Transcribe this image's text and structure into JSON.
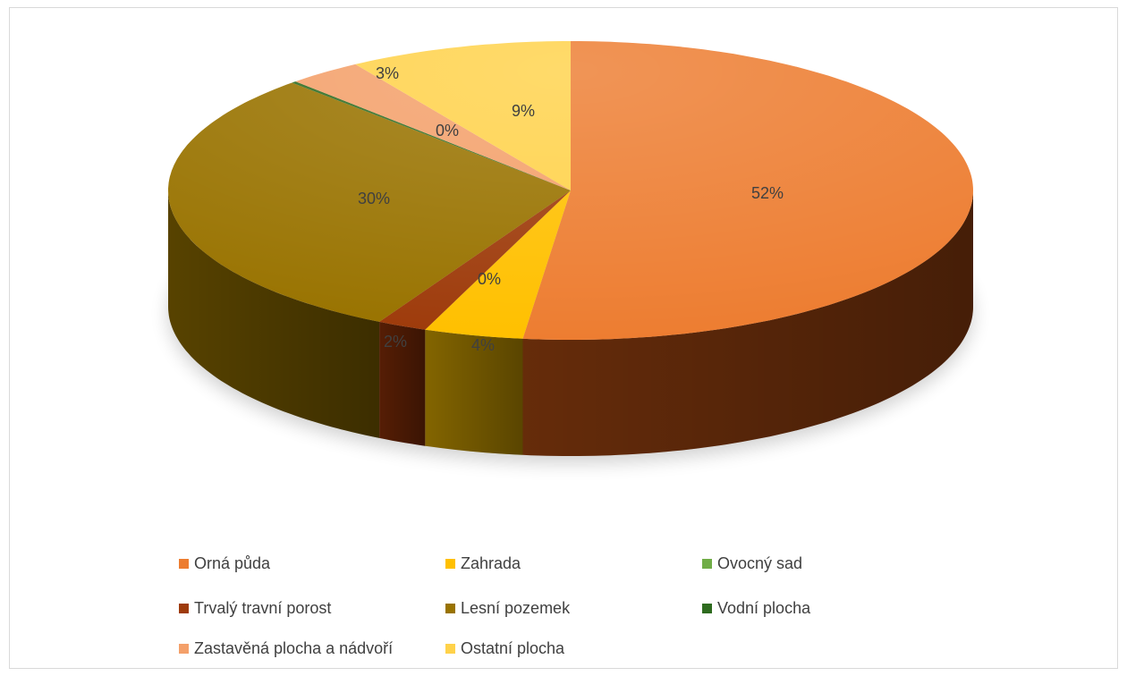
{
  "chart_data": {
    "type": "pie",
    "title": "",
    "series": [
      {
        "name": "Orná půda",
        "value": 52,
        "label": "52%",
        "color": "#ED7D31",
        "dark": "#6B2E0B"
      },
      {
        "name": "Zahrada",
        "value": 4,
        "label": "4%",
        "color": "#FFC000",
        "dark": "#8A6A00"
      },
      {
        "name": "Ovocný sad",
        "value": 0,
        "label": "0%",
        "color": "#70AD47",
        "dark": "#3A5F25"
      },
      {
        "name": "Trvalý travní porost",
        "value": 2,
        "label": "2%",
        "color": "#9E3B0B",
        "dark": "#5A1F05"
      },
      {
        "name": "Lesní pozemek",
        "value": 30,
        "label": "30%",
        "color": "#997300",
        "dark": "#5C4600"
      },
      {
        "name": "Vodní plocha",
        "value": 0.2,
        "label": "0%",
        "color": "#2E6B1F",
        "dark": "#1A3F12"
      },
      {
        "name": "Zastavěná plocha a nádvoří",
        "value": 3,
        "label": "3%",
        "color": "#F4A06A",
        "dark": "#9A5A30"
      },
      {
        "name": "Ostatní plocha",
        "value": 9,
        "label": "9%",
        "color": "#FFD24A",
        "dark": "#9A7E20"
      }
    ],
    "legend_position": "bottom"
  },
  "legend": [
    {
      "label": "Orná půda",
      "color": "#ED7D31"
    },
    {
      "label": "Zahrada",
      "color": "#FFC000"
    },
    {
      "label": "Ovocný sad",
      "color": "#70AD47"
    },
    {
      "label": "Trvalý travní porost",
      "color": "#9E3B0B"
    },
    {
      "label": "Lesní pozemek",
      "color": "#997300"
    },
    {
      "label": "Vodní plocha",
      "color": "#2E6B1F"
    },
    {
      "label": "Zastavěná plocha a nádvoří",
      "color": "#F4A06A"
    },
    {
      "label": "Ostatní plocha",
      "color": "#FFD24A"
    }
  ]
}
